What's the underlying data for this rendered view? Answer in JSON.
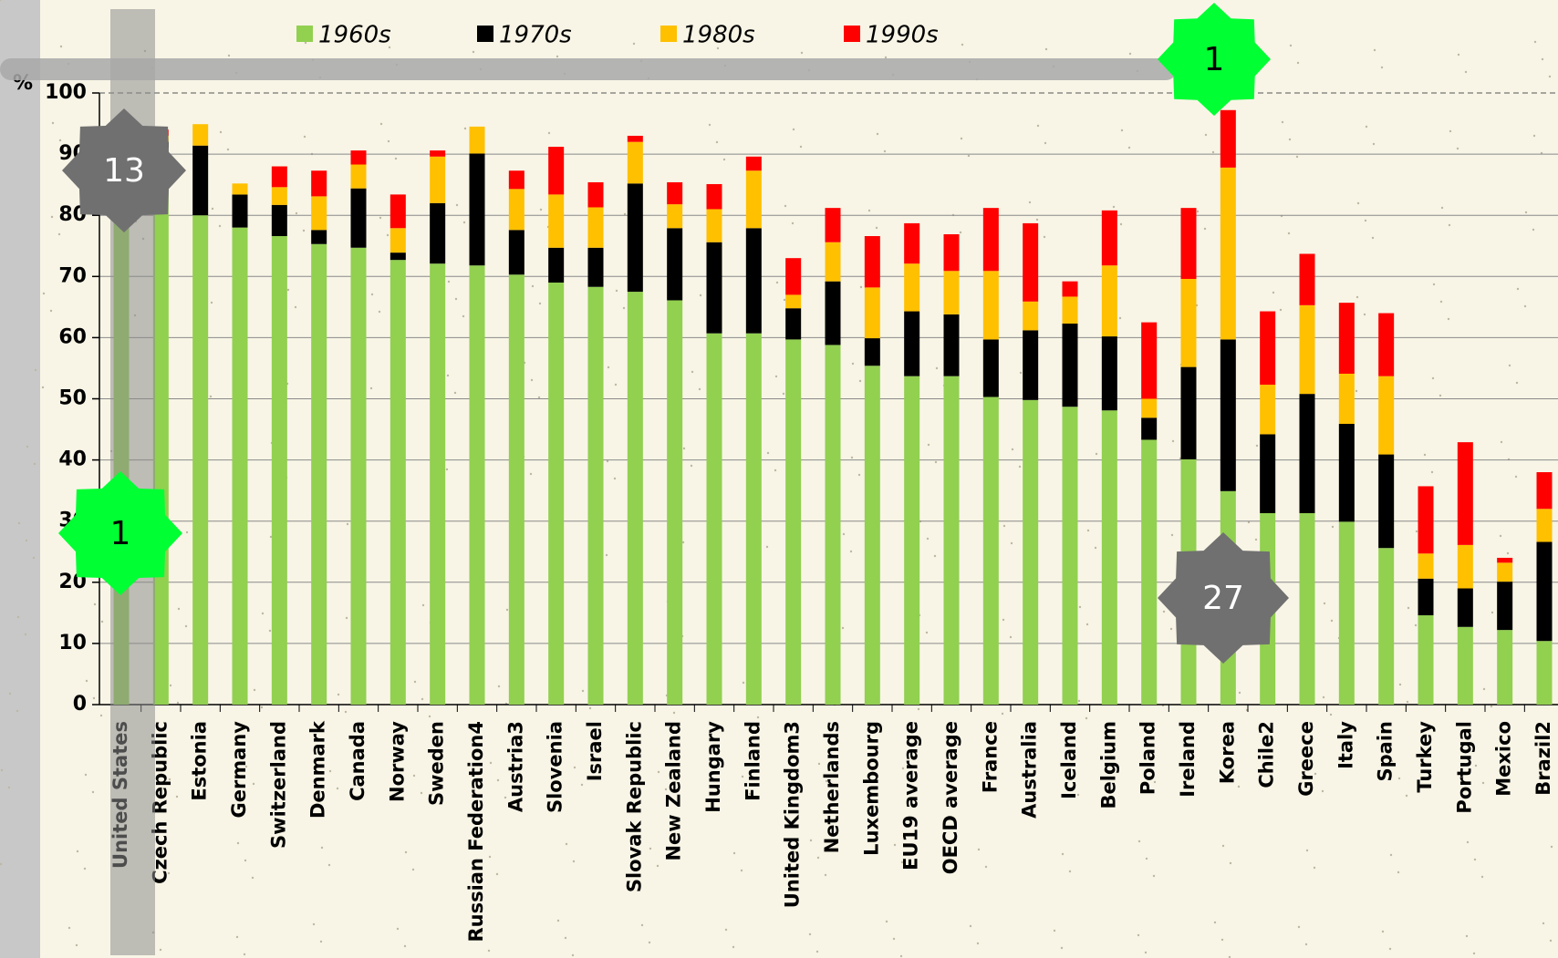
{
  "chart_data": {
    "type": "stacked_bar",
    "y_axis_label": "%",
    "categories": [
      "United States",
      "Czech Republic",
      "Estonia",
      "Germany",
      "Switzerland",
      "Denmark",
      "Canada",
      "Norway",
      "Sweden",
      "Russian Federation4",
      "Austria3",
      "Slovenia",
      "Israel",
      "Slovak Republic",
      "New Zealand",
      "Hungary",
      "Finland",
      "United Kingdom3",
      "Netherlands",
      "Luxembourg",
      "EU19  average",
      "OECD average",
      "France",
      "Australia",
      "Iceland",
      "Belgium",
      "Poland",
      "Ireland",
      "Korea",
      "Chile2",
      "Greece",
      "Italy",
      "Spain",
      "Turkey",
      "Portugal",
      "Mexico",
      "Brazil2"
    ],
    "series": [
      {
        "name": "1960s",
        "color": "#92d050",
        "values": [
          82,
          91,
          80,
          78,
          76.6,
          75.3,
          74.7,
          72.7,
          72.1,
          71.8,
          70.3,
          69,
          68.3,
          67.5,
          66.1,
          60.7,
          60.7,
          59.7,
          58.8,
          55.4,
          53.7,
          53.7,
          50.3,
          49.8,
          48.7,
          48.1,
          43.3,
          40.1,
          34.9,
          31.3,
          31.3,
          29.9,
          25.6,
          14.6,
          12.7,
          12.2,
          10.4
        ]
      },
      {
        "name": "1970s",
        "color": "#000000",
        "values": [
          6,
          1,
          11.4,
          5.4,
          5.1,
          2.3,
          9.7,
          1.2,
          9.9,
          18.3,
          7.3,
          5.7,
          6.4,
          17.7,
          11.8,
          14.9,
          17.2,
          5.1,
          10.4,
          4.5,
          10.6,
          10.1,
          9.4,
          11.4,
          13.6,
          12.1,
          3.6,
          15.1,
          24.8,
          12.9,
          19.5,
          16,
          15.3,
          6,
          6.3,
          7.9,
          16.2
        ]
      },
      {
        "name": "1980s",
        "color": "#ffc000",
        "values": [
          2,
          1,
          3.5,
          1.8,
          2.9,
          5.5,
          3.9,
          4,
          7.6,
          4.4,
          6.7,
          8.7,
          6.6,
          6.8,
          3.9,
          5.4,
          9.4,
          2.2,
          6.4,
          8.3,
          7.8,
          7.1,
          11.2,
          4.7,
          4.4,
          11.6,
          3.1,
          14.4,
          28.1,
          8.1,
          14.5,
          8.2,
          12.8,
          4.1,
          7.1,
          3.1,
          5.4
        ]
      },
      {
        "name": "1990s",
        "color": "#ff0000",
        "values": [
          0,
          1,
          0,
          0,
          3.4,
          4.2,
          2.3,
          5.5,
          1,
          0,
          3,
          7.8,
          4.1,
          1,
          3.6,
          4.1,
          2.3,
          6,
          5.6,
          8.4,
          6.6,
          6,
          10.3,
          12.8,
          2.5,
          9,
          12.5,
          11.6,
          9.4,
          12,
          8.4,
          11.6,
          10.3,
          11,
          16.8,
          0.8,
          6
        ]
      }
    ],
    "ylim": [
      0,
      100
    ],
    "yticks": [
      0,
      10,
      20,
      30,
      40,
      50,
      60,
      70,
      80,
      90,
      100
    ],
    "grid": true,
    "annotations": [
      "13",
      "1",
      "1",
      "27"
    ]
  }
}
